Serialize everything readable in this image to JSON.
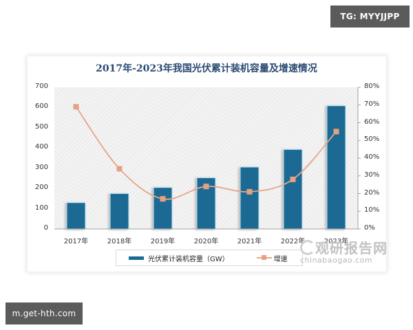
{
  "badges": {
    "top_right": "TG: MYYJJPP",
    "bottom_left": "m.get-hth.com"
  },
  "watermark": {
    "cn": "观研报告网",
    "en": "chinabaogao.com"
  },
  "chart_data": {
    "type": "bar+line",
    "title": "2017年-2023年我国光伏累计装机容量及增速情况",
    "categories": [
      "2017年",
      "2018年",
      "2019年",
      "2020年",
      "2021年",
      "2022年",
      "2023年"
    ],
    "series": [
      {
        "name": "光伏累计装机容量（GW）",
        "type": "bar",
        "axis": "left",
        "color": "#1c6a93",
        "values": [
          130,
          175,
          205,
          253,
          306,
          393,
          609
        ]
      },
      {
        "name": "增速",
        "type": "line",
        "axis": "right",
        "color": "#e8a587",
        "marker": "square",
        "values": [
          0.69,
          0.34,
          0.17,
          0.24,
          0.21,
          0.28,
          0.55
        ]
      }
    ],
    "left_axis": {
      "ticks": [
        "0",
        "100",
        "200",
        "300",
        "400",
        "500",
        "600",
        "700"
      ],
      "ylim": [
        0,
        700
      ]
    },
    "right_axis": {
      "ticks": [
        "0%",
        "10%",
        "20%",
        "30%",
        "40%",
        "50%",
        "60%",
        "70%",
        "80%"
      ],
      "ylim": [
        0,
        0.8
      ]
    },
    "xlabel": "",
    "ylabel": "",
    "grid": false,
    "legend_position": "bottom",
    "legend": [
      "光伏累计装机容量（GW）",
      "增速"
    ]
  }
}
